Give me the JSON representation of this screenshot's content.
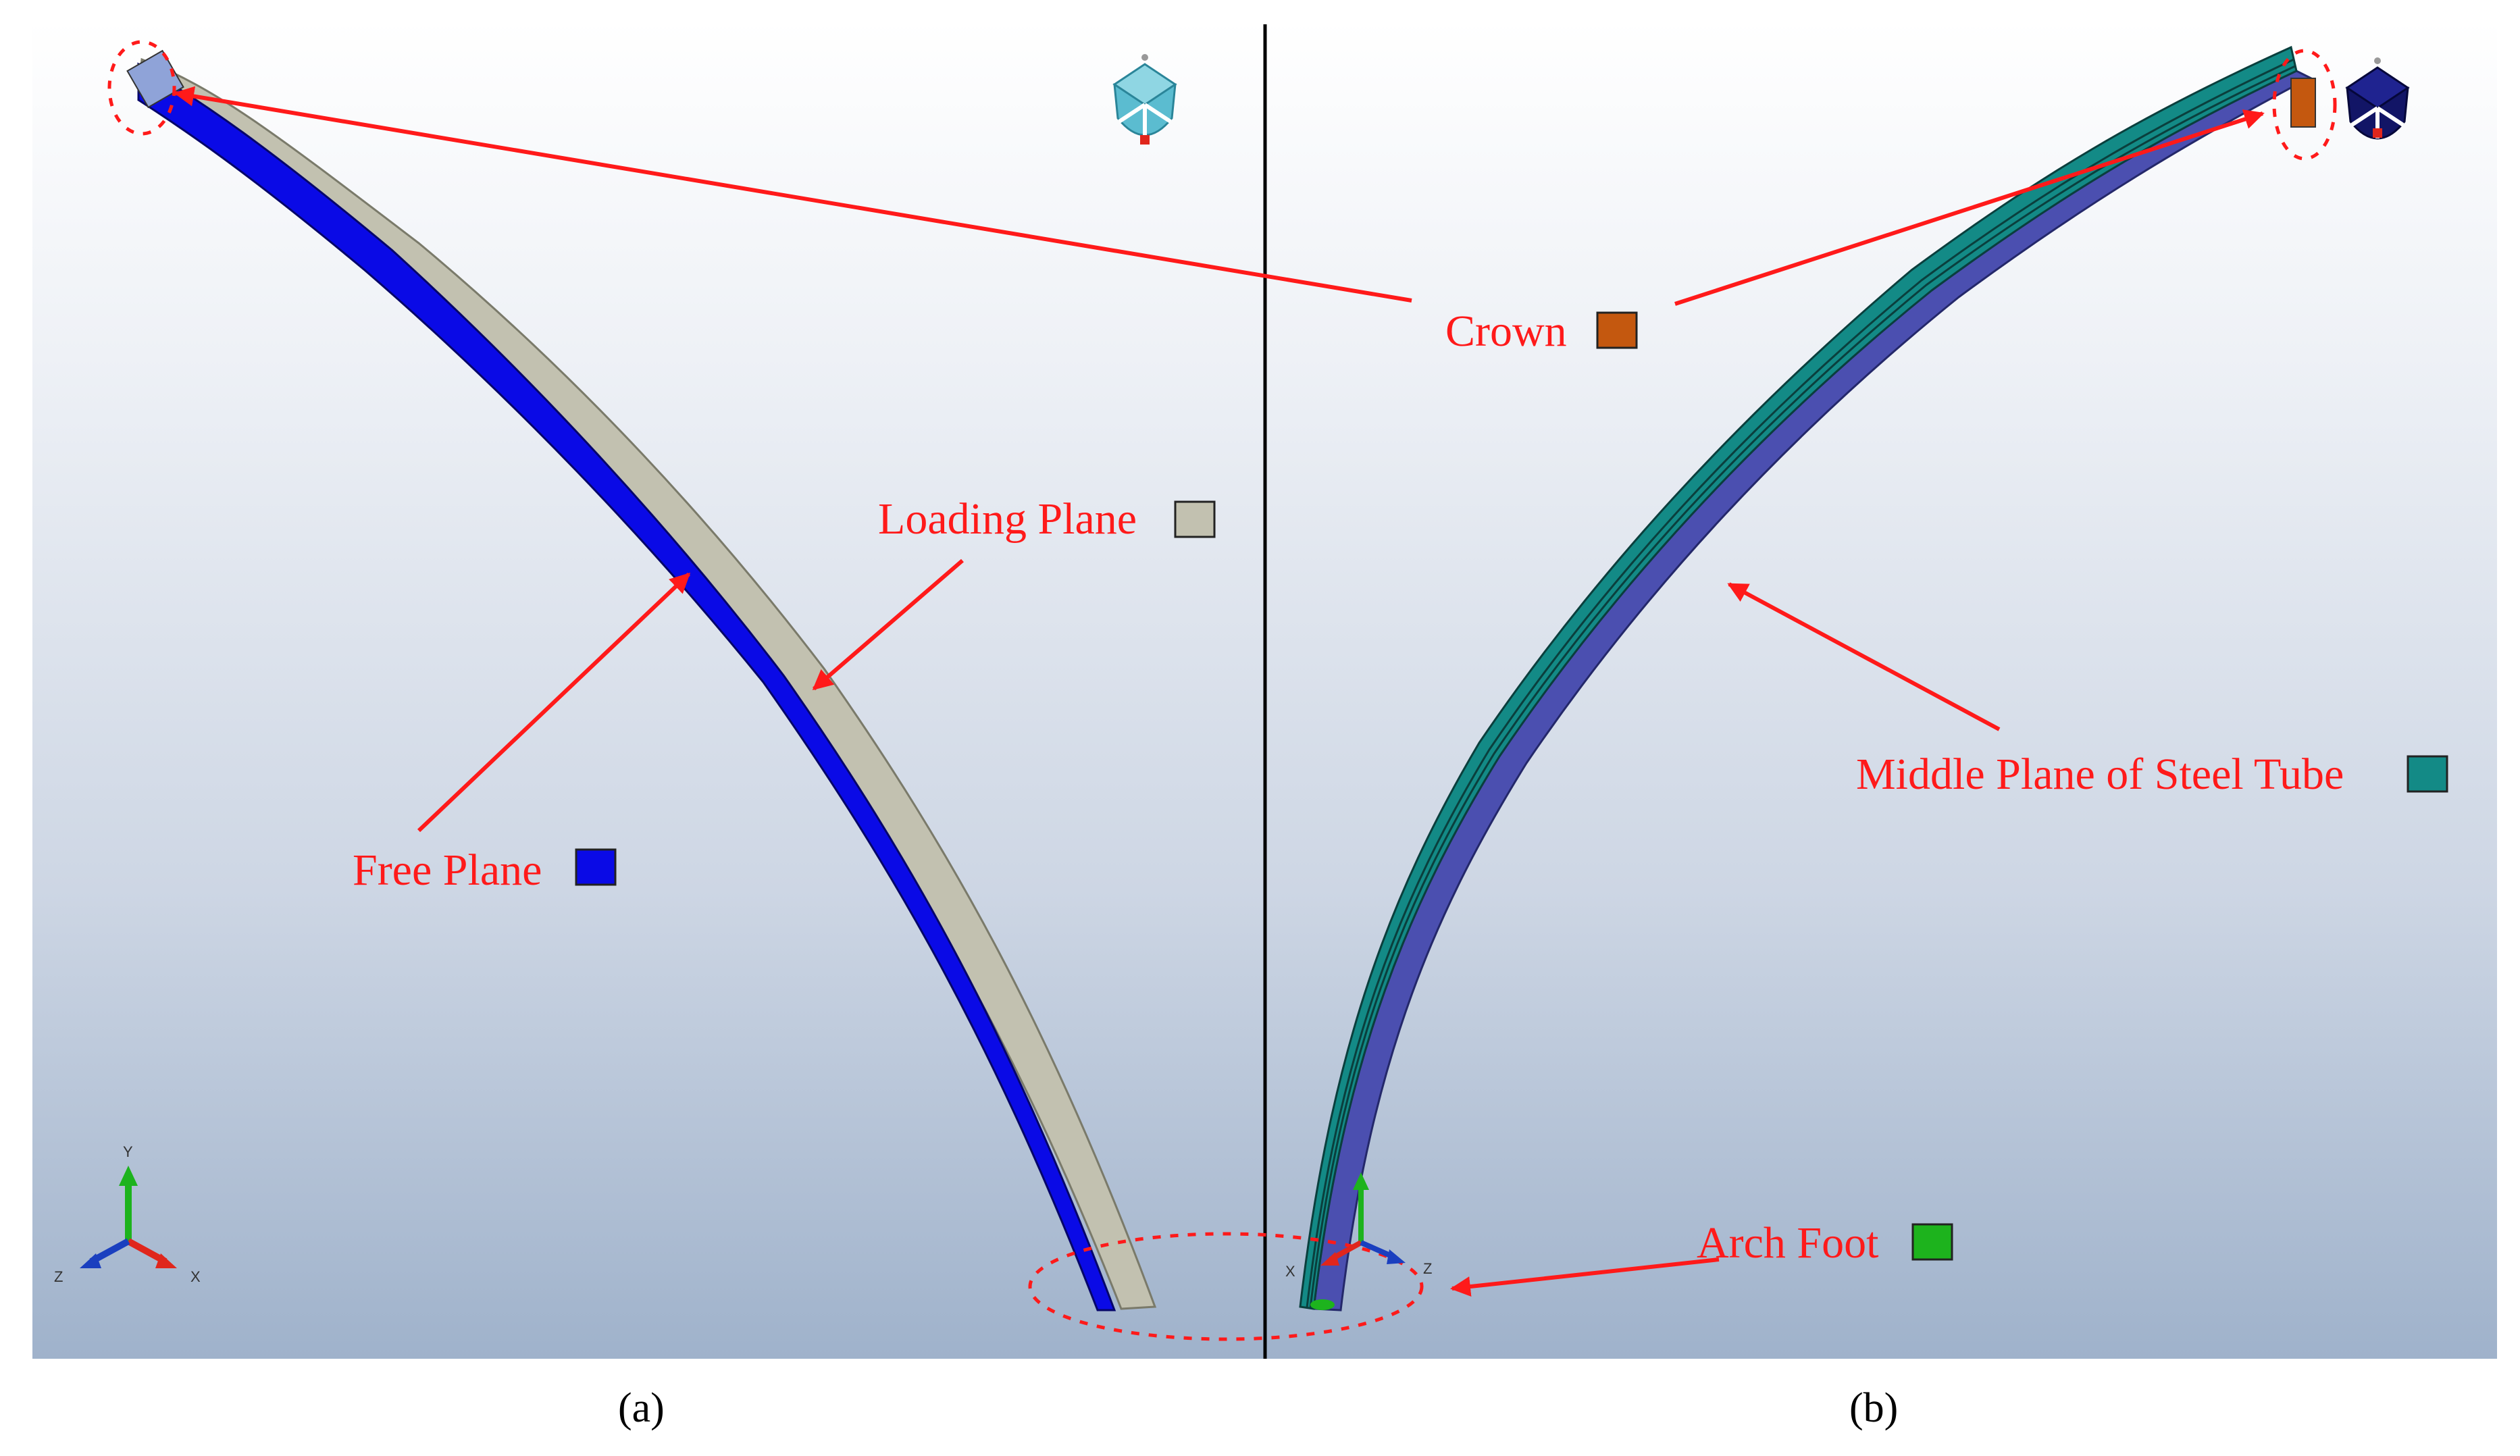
{
  "labels": {
    "crown": "Crown",
    "loading_plane": "Loading Plane",
    "free_plane": "Free Plane",
    "middle_plane": "Middle Plane of Steel Tube",
    "arch_foot": "Arch Foot"
  },
  "captions": {
    "a": "(a)",
    "b": "(b)"
  },
  "axes": {
    "x": "X",
    "y": "Y",
    "z": "Z"
  },
  "colors": {
    "annotation": "#ff1a1a",
    "crown": "#c4580f",
    "loading_plane": "#c2c1b0",
    "free_plane": "#0a0ae6",
    "middle_plane": "#138a86",
    "arch_foot": "#1db31d",
    "divider": "#000000"
  }
}
